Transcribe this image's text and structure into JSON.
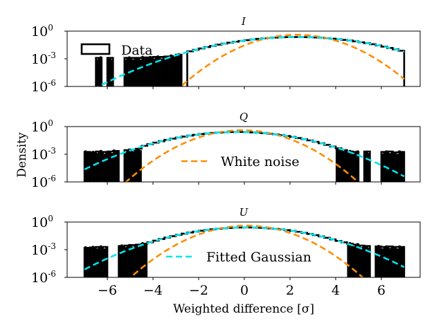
{
  "chart_data": {
    "type": "line",
    "figure": {
      "xlabel": "Weighted difference [σ]",
      "ylabel": "Density",
      "xlim": [
        -7.76,
        7.7
      ],
      "ylim_log10": [
        -6,
        0
      ],
      "yscale": "log",
      "xticks": [
        -6,
        -4,
        -2,
        0,
        2,
        4,
        6
      ],
      "xtick_labels": [
        "−6",
        "−4",
        "−2",
        "0",
        "2",
        "4",
        "6"
      ],
      "yticks_log10": [
        0,
        -3,
        -6
      ],
      "ytick_labels": [
        {
          "base": "10",
          "exp": "0"
        },
        {
          "base": "10",
          "exp": "-3"
        },
        {
          "base": "10",
          "exp": "-6"
        }
      ],
      "colors": {
        "data": "#000000",
        "white_noise": "#ff8c00",
        "fitted": "#00e5ee"
      },
      "bin_start": -7.0,
      "bin_width": 0.25
    },
    "panels": [
      {
        "title": "I",
        "legend": {
          "label": "Data",
          "kind": "data",
          "position": "upper-left"
        },
        "white_noise": {
          "name": "White noise",
          "mean": 2.3,
          "sigma": 1.0
        },
        "fitted_gaussian": {
          "name": "Fitted Gaussian",
          "mean": 2.3,
          "sigma": 1.75
        },
        "data_log10_density": [
          null,
          null,
          -2.9,
          null,
          -2.9,
          null,
          null,
          -2.9,
          -2.9,
          -2.9,
          -2.85,
          -2.85,
          -2.8,
          -2.8,
          -2.75,
          -2.7,
          -2.55,
          null,
          -2.19,
          -2.03,
          -1.88,
          -1.73,
          -1.6,
          -1.47,
          -1.35,
          -1.25,
          -1.15,
          -1.06,
          -0.98,
          -0.9,
          -0.84,
          -0.78,
          -0.74,
          -0.7,
          -0.67,
          -0.65,
          -0.64,
          -0.64,
          -0.65,
          -0.66,
          -0.69,
          -0.72,
          -0.76,
          -0.82,
          -0.88,
          -0.95,
          -1.02,
          -1.11,
          -1.21,
          -1.31,
          -1.42,
          -1.55,
          -1.68,
          -1.82,
          -1.97,
          -2.12
        ]
      },
      {
        "title": "Q",
        "legend": {
          "label": "White noise",
          "kind": "white_noise",
          "position": "lower-center"
        },
        "white_noise": {
          "name": "White noise",
          "mean": -0.1,
          "sigma": 1.0
        },
        "fitted_gaussian": {
          "name": "Fitted Gaussian",
          "mean": -0.3,
          "sigma": 1.55
        },
        "data_log10_density": [
          -2.75,
          -2.8,
          -2.7,
          -2.75,
          -2.7,
          -2.65,
          null,
          -2.55,
          -2.5,
          -2.4,
          -2.09,
          -1.91,
          -1.74,
          -1.59,
          -1.44,
          -1.31,
          -1.19,
          -1.08,
          -0.98,
          -0.89,
          -0.81,
          -0.75,
          -0.69,
          -0.65,
          -0.62,
          -0.6,
          -0.59,
          -0.59,
          -0.61,
          -0.63,
          -0.67,
          -0.72,
          -0.77,
          -0.84,
          -0.93,
          -1.02,
          -1.12,
          -1.24,
          -1.36,
          -1.5,
          -1.65,
          -1.81,
          -1.98,
          -2.16,
          -2.36,
          -2.55,
          -2.7,
          -2.75,
          null,
          -2.7,
          null,
          null,
          -2.75,
          -2.7,
          -2.8,
          -2.75
        ]
      },
      {
        "title": "U",
        "legend": {
          "label": "Fitted Gaussian",
          "kind": "fitted",
          "position": "lower-center"
        },
        "white_noise": {
          "name": "White noise",
          "mean": 0.1,
          "sigma": 1.0
        },
        "fitted_gaussian": {
          "name": "Fitted Gaussian",
          "mean": 0.1,
          "sigma": 1.55
        },
        "data_log10_density": [
          -2.8,
          -2.75,
          -2.7,
          -2.7,
          null,
          null,
          -2.6,
          -2.55,
          -2.5,
          -2.45,
          -2.35,
          -2.2,
          -2.02,
          -1.84,
          -1.68,
          -1.53,
          -1.39,
          -1.26,
          -1.14,
          -1.04,
          -0.94,
          -0.86,
          -0.79,
          -0.73,
          -0.68,
          -0.64,
          -0.61,
          -0.6,
          -0.59,
          -0.6,
          -0.62,
          -0.64,
          -0.69,
          -0.74,
          -0.8,
          -0.88,
          -0.96,
          -1.06,
          -1.17,
          -1.29,
          -1.42,
          -1.56,
          -1.71,
          -1.88,
          -2.05,
          -2.2,
          -2.35,
          -2.45,
          -2.55,
          -2.6,
          null,
          -2.65,
          -2.7,
          -2.65,
          -2.7,
          -2.7
        ]
      }
    ]
  }
}
